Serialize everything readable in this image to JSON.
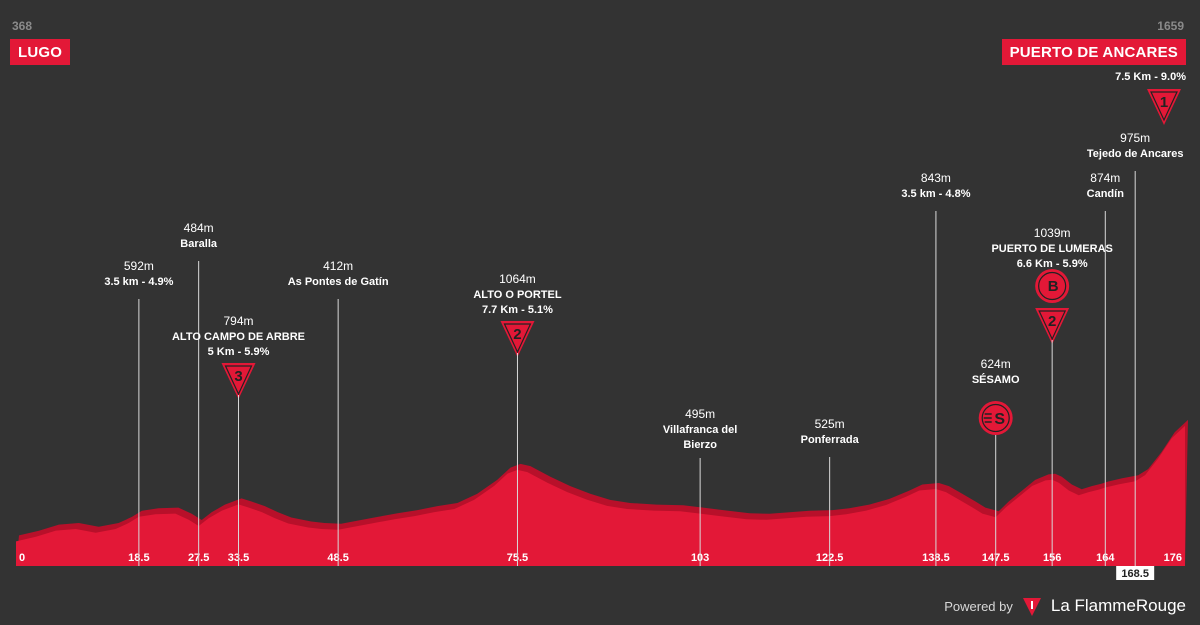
{
  "start": {
    "altitude": "368",
    "name": "LUGO"
  },
  "finish": {
    "altitude": "1659",
    "name": "PUERTO DE ANCARES",
    "climb": "7.5 Km - 9.0%",
    "category": "1"
  },
  "footer": {
    "powered_by": "Powered by",
    "brand": "La FlammeRouge"
  },
  "colors": {
    "background": "#333333",
    "profile": "#e31837",
    "profile_dark": "#b8102a",
    "text": "#ffffff",
    "muted": "#8a8a8a"
  },
  "chart_data": {
    "type": "area",
    "x_unit": "km",
    "y_unit": "m",
    "xlim": [
      0,
      176
    ],
    "profile": [
      [
        0,
        380
      ],
      [
        3,
        395
      ],
      [
        6,
        415
      ],
      [
        9,
        420
      ],
      [
        12,
        408
      ],
      [
        15,
        420
      ],
      [
        17,
        440
      ],
      [
        18.5,
        460
      ],
      [
        21,
        468
      ],
      [
        24,
        470
      ],
      [
        26,
        450
      ],
      [
        27.5,
        430
      ],
      [
        29,
        455
      ],
      [
        31,
        480
      ],
      [
        33.5,
        500
      ],
      [
        35,
        490
      ],
      [
        37,
        475
      ],
      [
        39,
        455
      ],
      [
        41,
        438
      ],
      [
        44,
        425
      ],
      [
        46,
        420
      ],
      [
        48.5,
        418
      ],
      [
        51,
        428
      ],
      [
        54,
        440
      ],
      [
        57,
        452
      ],
      [
        60,
        462
      ],
      [
        63,
        475
      ],
      [
        66,
        485
      ],
      [
        69,
        515
      ],
      [
        72,
        560
      ],
      [
        74,
        600
      ],
      [
        75.5,
        612
      ],
      [
        77,
        605
      ],
      [
        80,
        570
      ],
      [
        83,
        540
      ],
      [
        86,
        515
      ],
      [
        89,
        495
      ],
      [
        92,
        485
      ],
      [
        96,
        480
      ],
      [
        100,
        478
      ],
      [
        103,
        470
      ],
      [
        106,
        462
      ],
      [
        110,
        452
      ],
      [
        113,
        450
      ],
      [
        116,
        455
      ],
      [
        119,
        460
      ],
      [
        122.5,
        462
      ],
      [
        125,
        468
      ],
      [
        128,
        480
      ],
      [
        131,
        498
      ],
      [
        134,
        525
      ],
      [
        136,
        545
      ],
      [
        138.5,
        550
      ],
      [
        140,
        540
      ],
      [
        142,
        515
      ],
      [
        144,
        490
      ],
      [
        145.5,
        470
      ],
      [
        147.5,
        458
      ],
      [
        149,
        490
      ],
      [
        151,
        525
      ],
      [
        153,
        560
      ],
      [
        155,
        578
      ],
      [
        156,
        580
      ],
      [
        157,
        570
      ],
      [
        158.5,
        545
      ],
      [
        160,
        530
      ],
      [
        161.5,
        540
      ],
      [
        163,
        548
      ],
      [
        164,
        555
      ],
      [
        166,
        565
      ],
      [
        168.5,
        575
      ],
      [
        170,
        595
      ],
      [
        172,
        650
      ],
      [
        174,
        715
      ],
      [
        176,
        755
      ]
    ],
    "km_ticks": [
      {
        "km": 0,
        "label": "0"
      },
      {
        "km": 18.5,
        "label": "18.5"
      },
      {
        "km": 27.5,
        "label": "27.5"
      },
      {
        "km": 33.5,
        "label": "33.5"
      },
      {
        "km": 48.5,
        "label": "48.5"
      },
      {
        "km": 75.5,
        "label": "75.5"
      },
      {
        "km": 103,
        "label": "103"
      },
      {
        "km": 122.5,
        "label": "122.5"
      },
      {
        "km": 138.5,
        "label": "138.5"
      },
      {
        "km": 147.5,
        "label": "147.5"
      },
      {
        "km": 156,
        "label": "156"
      },
      {
        "km": 164,
        "label": "164"
      },
      {
        "km": 168.5,
        "label": "168.5"
      },
      {
        "km": 176,
        "label": "176"
      }
    ],
    "waypoints": [
      {
        "km": 18.5,
        "altitude": "592m",
        "name": "3.5 km - 4.9%"
      },
      {
        "km": 27.5,
        "altitude": "484m",
        "name": "Baralla"
      },
      {
        "km": 33.5,
        "altitude": "794m",
        "name": "ALTO CAMPO DE ARBRE",
        "climb": "5 Km - 5.9%",
        "category": "3"
      },
      {
        "km": 48.5,
        "altitude": "412m",
        "name": "As Pontes de Gatín"
      },
      {
        "km": 75.5,
        "altitude": "1064m",
        "name": "ALTO O PORTEL",
        "climb": "7.7 Km - 5.1%",
        "category": "2"
      },
      {
        "km": 103,
        "altitude": "495m",
        "name": "Villafranca del",
        "name2": "Bierzo"
      },
      {
        "km": 122.5,
        "altitude": "525m",
        "name": "Ponferrada"
      },
      {
        "km": 138.5,
        "altitude": "843m",
        "name": "3.5 km - 4.8%"
      },
      {
        "km": 147.5,
        "altitude": "624m",
        "name": "SÉSAMO",
        "sprint": true
      },
      {
        "km": 156,
        "altitude": "1039m",
        "name": "PUERTO DE LUMERAS",
        "climb": "6.6 Km - 5.9%",
        "category": "2",
        "bonus": "B"
      },
      {
        "km": 164,
        "altitude": "874m",
        "name": "Candín"
      },
      {
        "km": 168.5,
        "altitude": "975m",
        "name": "Tejedo de Ancares"
      }
    ]
  }
}
